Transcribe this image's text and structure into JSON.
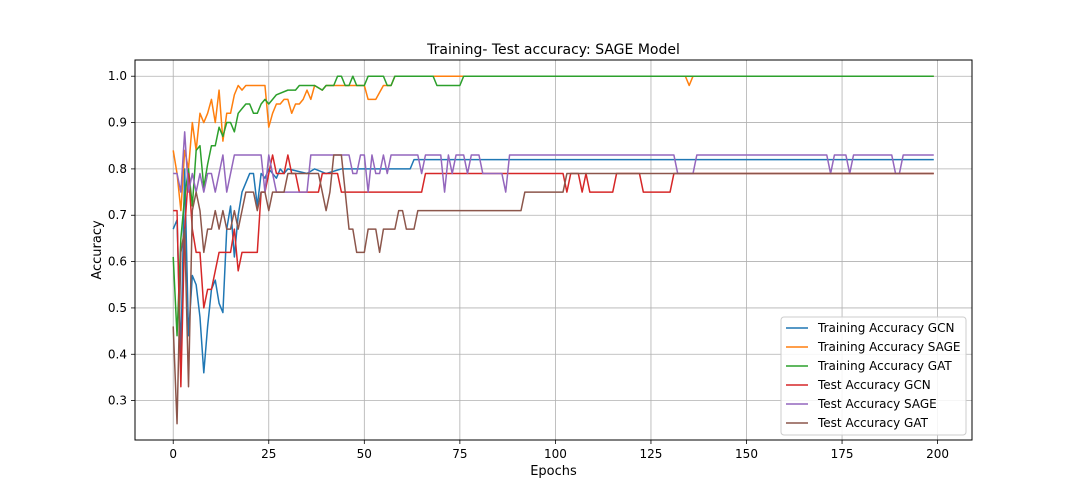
{
  "chart_data": {
    "type": "line",
    "title": "Training- Test accuracy: SAGE Model",
    "xlabel": "Epochs",
    "ylabel": "Accuracy",
    "xlim": [
      -10,
      209
    ],
    "ylim": [
      0.215,
      1.035
    ],
    "xticks": [
      0,
      25,
      50,
      75,
      100,
      125,
      150,
      175,
      200
    ],
    "yticks": [
      0.3,
      0.4,
      0.5,
      0.6,
      0.7,
      0.8,
      0.9,
      1.0
    ],
    "xtick_labels": [
      "0",
      "25",
      "50",
      "75",
      "100",
      "125",
      "150",
      "175",
      "200"
    ],
    "ytick_labels": [
      "0.3",
      "0.4",
      "0.5",
      "0.6",
      "0.7",
      "0.8",
      "0.9",
      "1.0"
    ],
    "grid": true,
    "legend_position": "lower right",
    "series": [
      {
        "name": "Training Accuracy GCN",
        "color": "#1f77b4",
        "points": [
          [
            0,
            0.67
          ],
          [
            1,
            0.69
          ],
          [
            2,
            0.4
          ],
          [
            3,
            0.8
          ],
          [
            4,
            0.44
          ],
          [
            5,
            0.57
          ],
          [
            6,
            0.55
          ],
          [
            7,
            0.48
          ],
          [
            8,
            0.36
          ],
          [
            9,
            0.46
          ],
          [
            10,
            0.54
          ],
          [
            11,
            0.56
          ],
          [
            12,
            0.51
          ],
          [
            13,
            0.49
          ],
          [
            14,
            0.67
          ],
          [
            15,
            0.72
          ],
          [
            16,
            0.61
          ],
          [
            17,
            0.7
          ],
          [
            18,
            0.75
          ],
          [
            19,
            0.77
          ],
          [
            20,
            0.79
          ],
          [
            21,
            0.79
          ],
          [
            22,
            0.72
          ],
          [
            23,
            0.79
          ],
          [
            24,
            0.78
          ],
          [
            25,
            0.8
          ],
          [
            26,
            0.79
          ],
          [
            27,
            0.78
          ],
          [
            28,
            0.8
          ],
          [
            29,
            0.79
          ],
          [
            30,
            0.8
          ],
          [
            35,
            0.79
          ],
          [
            37,
            0.8
          ],
          [
            40,
            0.79
          ],
          [
            44,
            0.8
          ],
          [
            46,
            0.8
          ],
          [
            62,
            0.8
          ],
          [
            63,
            0.82
          ],
          [
            199,
            0.82
          ]
        ]
      },
      {
        "name": "Training Accuracy SAGE",
        "color": "#ff7f0e",
        "points": [
          [
            0,
            0.84
          ],
          [
            1,
            0.79
          ],
          [
            2,
            0.71
          ],
          [
            3,
            0.84
          ],
          [
            4,
            0.8
          ],
          [
            5,
            0.9
          ],
          [
            6,
            0.84
          ],
          [
            7,
            0.92
          ],
          [
            8,
            0.9
          ],
          [
            9,
            0.92
          ],
          [
            10,
            0.95
          ],
          [
            11,
            0.9
          ],
          [
            12,
            0.97
          ],
          [
            13,
            0.86
          ],
          [
            14,
            0.92
          ],
          [
            15,
            0.92
          ],
          [
            16,
            0.96
          ],
          [
            17,
            0.98
          ],
          [
            18,
            0.97
          ],
          [
            19,
            0.98
          ],
          [
            20,
            0.98
          ],
          [
            24,
            0.98
          ],
          [
            25,
            0.89
          ],
          [
            26,
            0.92
          ],
          [
            27,
            0.94
          ],
          [
            28,
            0.94
          ],
          [
            29,
            0.95
          ],
          [
            30,
            0.95
          ],
          [
            31,
            0.92
          ],
          [
            32,
            0.94
          ],
          [
            33,
            0.94
          ],
          [
            34,
            0.95
          ],
          [
            35,
            0.97
          ],
          [
            36,
            0.95
          ],
          [
            37,
            0.98
          ],
          [
            39,
            0.97
          ],
          [
            40,
            0.98
          ],
          [
            50,
            0.98
          ],
          [
            51,
            0.95
          ],
          [
            53,
            0.95
          ],
          [
            55,
            0.98
          ],
          [
            57,
            0.98
          ],
          [
            58,
            1.0
          ],
          [
            134,
            1.0
          ],
          [
            135,
            0.98
          ],
          [
            136,
            1.0
          ],
          [
            199,
            1.0
          ]
        ]
      },
      {
        "name": "Training Accuracy GAT",
        "color": "#2ca02c",
        "points": [
          [
            0,
            0.61
          ],
          [
            1,
            0.44
          ],
          [
            2,
            0.65
          ],
          [
            3,
            0.74
          ],
          [
            4,
            0.8
          ],
          [
            5,
            0.72
          ],
          [
            6,
            0.84
          ],
          [
            7,
            0.85
          ],
          [
            8,
            0.76
          ],
          [
            9,
            0.81
          ],
          [
            10,
            0.85
          ],
          [
            11,
            0.85
          ],
          [
            12,
            0.89
          ],
          [
            13,
            0.87
          ],
          [
            14,
            0.9
          ],
          [
            15,
            0.9
          ],
          [
            16,
            0.88
          ],
          [
            17,
            0.92
          ],
          [
            18,
            0.93
          ],
          [
            19,
            0.94
          ],
          [
            20,
            0.94
          ],
          [
            21,
            0.92
          ],
          [
            22,
            0.92
          ],
          [
            23,
            0.94
          ],
          [
            24,
            0.95
          ],
          [
            25,
            0.94
          ],
          [
            26,
            0.95
          ],
          [
            27,
            0.96
          ],
          [
            30,
            0.97
          ],
          [
            32,
            0.97
          ],
          [
            33,
            0.98
          ],
          [
            36,
            0.98
          ],
          [
            37,
            0.98
          ],
          [
            39,
            0.97
          ],
          [
            40,
            0.98
          ],
          [
            41,
            0.98
          ],
          [
            42,
            0.98
          ],
          [
            43,
            1.0
          ],
          [
            44,
            1.0
          ],
          [
            45,
            0.98
          ],
          [
            46,
            0.98
          ],
          [
            47,
            1.0
          ],
          [
            48,
            0.98
          ],
          [
            50,
            0.98
          ],
          [
            51,
            1.0
          ],
          [
            55,
            1.0
          ],
          [
            56,
            0.98
          ],
          [
            57,
            0.98
          ],
          [
            58,
            1.0
          ],
          [
            68,
            1.0
          ],
          [
            69,
            0.98
          ],
          [
            75,
            0.98
          ],
          [
            76,
            1.0
          ],
          [
            199,
            1.0
          ]
        ]
      },
      {
        "name": "Test Accuracy GCN",
        "color": "#d62728",
        "points": [
          [
            0,
            0.71
          ],
          [
            1,
            0.71
          ],
          [
            2,
            0.33
          ],
          [
            3,
            0.67
          ],
          [
            4,
            0.79
          ],
          [
            5,
            0.67
          ],
          [
            6,
            0.62
          ],
          [
            7,
            0.62
          ],
          [
            8,
            0.5
          ],
          [
            9,
            0.54
          ],
          [
            10,
            0.54
          ],
          [
            11,
            0.58
          ],
          [
            12,
            0.62
          ],
          [
            14,
            0.62
          ],
          [
            15,
            0.62
          ],
          [
            16,
            0.67
          ],
          [
            17,
            0.58
          ],
          [
            18,
            0.62
          ],
          [
            22,
            0.62
          ],
          [
            23,
            0.75
          ],
          [
            24,
            0.75
          ],
          [
            25,
            0.79
          ],
          [
            26,
            0.83
          ],
          [
            27,
            0.79
          ],
          [
            28,
            0.79
          ],
          [
            29,
            0.79
          ],
          [
            30,
            0.83
          ],
          [
            31,
            0.79
          ],
          [
            32,
            0.79
          ],
          [
            33,
            0.75
          ],
          [
            38,
            0.75
          ],
          [
            39,
            0.79
          ],
          [
            43,
            0.79
          ],
          [
            44,
            0.75
          ],
          [
            65,
            0.75
          ],
          [
            66,
            0.79
          ],
          [
            102,
            0.79
          ],
          [
            103,
            0.75
          ],
          [
            104,
            0.79
          ],
          [
            106,
            0.79
          ],
          [
            107,
            0.75
          ],
          [
            108,
            0.79
          ],
          [
            109,
            0.75
          ],
          [
            115,
            0.75
          ],
          [
            116,
            0.79
          ],
          [
            122,
            0.79
          ],
          [
            123,
            0.75
          ],
          [
            130,
            0.75
          ],
          [
            131,
            0.79
          ],
          [
            199,
            0.79
          ]
        ]
      },
      {
        "name": "Test Accuracy SAGE",
        "color": "#9467bd",
        "points": [
          [
            0,
            0.79
          ],
          [
            1,
            0.79
          ],
          [
            2,
            0.75
          ],
          [
            3,
            0.88
          ],
          [
            4,
            0.75
          ],
          [
            5,
            0.79
          ],
          [
            6,
            0.75
          ],
          [
            7,
            0.79
          ],
          [
            8,
            0.75
          ],
          [
            9,
            0.79
          ],
          [
            10,
            0.79
          ],
          [
            11,
            0.75
          ],
          [
            12,
            0.79
          ],
          [
            13,
            0.83
          ],
          [
            14,
            0.75
          ],
          [
            15,
            0.79
          ],
          [
            16,
            0.83
          ],
          [
            23,
            0.83
          ],
          [
            24,
            0.75
          ],
          [
            25,
            0.83
          ],
          [
            26,
            0.79
          ],
          [
            27,
            0.75
          ],
          [
            35,
            0.75
          ],
          [
            36,
            0.83
          ],
          [
            46,
            0.83
          ],
          [
            47,
            0.79
          ],
          [
            48,
            0.79
          ],
          [
            49,
            0.83
          ],
          [
            50,
            0.83
          ],
          [
            51,
            0.75
          ],
          [
            52,
            0.83
          ],
          [
            53,
            0.79
          ],
          [
            54,
            0.79
          ],
          [
            55,
            0.83
          ],
          [
            56,
            0.79
          ],
          [
            57,
            0.83
          ],
          [
            64,
            0.83
          ],
          [
            65,
            0.79
          ],
          [
            66,
            0.83
          ],
          [
            70,
            0.83
          ],
          [
            71,
            0.75
          ],
          [
            72,
            0.83
          ],
          [
            73,
            0.79
          ],
          [
            74,
            0.83
          ],
          [
            76,
            0.83
          ],
          [
            77,
            0.79
          ],
          [
            78,
            0.83
          ],
          [
            80,
            0.83
          ],
          [
            81,
            0.79
          ],
          [
            86,
            0.79
          ],
          [
            87,
            0.75
          ],
          [
            88,
            0.83
          ],
          [
            131,
            0.83
          ],
          [
            132,
            0.79
          ],
          [
            136,
            0.79
          ],
          [
            137,
            0.83
          ],
          [
            171,
            0.83
          ],
          [
            172,
            0.79
          ],
          [
            173,
            0.83
          ],
          [
            176,
            0.83
          ],
          [
            177,
            0.79
          ],
          [
            178,
            0.83
          ],
          [
            188,
            0.83
          ],
          [
            189,
            0.79
          ],
          [
            190,
            0.79
          ],
          [
            191,
            0.83
          ],
          [
            199,
            0.83
          ]
        ]
      },
      {
        "name": "Test Accuracy GAT",
        "color": "#8c564b",
        "points": [
          [
            0,
            0.46
          ],
          [
            1,
            0.25
          ],
          [
            2,
            0.62
          ],
          [
            3,
            0.67
          ],
          [
            4,
            0.33
          ],
          [
            5,
            0.71
          ],
          [
            6,
            0.75
          ],
          [
            7,
            0.71
          ],
          [
            8,
            0.62
          ],
          [
            9,
            0.67
          ],
          [
            10,
            0.67
          ],
          [
            11,
            0.71
          ],
          [
            12,
            0.67
          ],
          [
            13,
            0.71
          ],
          [
            14,
            0.67
          ],
          [
            15,
            0.67
          ],
          [
            16,
            0.71
          ],
          [
            17,
            0.67
          ],
          [
            18,
            0.71
          ],
          [
            19,
            0.75
          ],
          [
            20,
            0.75
          ],
          [
            21,
            0.75
          ],
          [
            22,
            0.71
          ],
          [
            23,
            0.75
          ],
          [
            24,
            0.75
          ],
          [
            25,
            0.71
          ],
          [
            26,
            0.75
          ],
          [
            27,
            0.75
          ],
          [
            29,
            0.75
          ],
          [
            30,
            0.79
          ],
          [
            38,
            0.79
          ],
          [
            39,
            0.75
          ],
          [
            40,
            0.71
          ],
          [
            41,
            0.75
          ],
          [
            42,
            0.83
          ],
          [
            44,
            0.83
          ],
          [
            45,
            0.75
          ],
          [
            46,
            0.67
          ],
          [
            47,
            0.67
          ],
          [
            48,
            0.62
          ],
          [
            50,
            0.62
          ],
          [
            51,
            0.67
          ],
          [
            53,
            0.67
          ],
          [
            54,
            0.62
          ],
          [
            55,
            0.67
          ],
          [
            58,
            0.67
          ],
          [
            59,
            0.71
          ],
          [
            60,
            0.71
          ],
          [
            61,
            0.67
          ],
          [
            63,
            0.67
          ],
          [
            64,
            0.71
          ],
          [
            78,
            0.71
          ],
          [
            79,
            0.71
          ],
          [
            91,
            0.71
          ],
          [
            92,
            0.75
          ],
          [
            102,
            0.75
          ],
          [
            103,
            0.79
          ],
          [
            199,
            0.79
          ]
        ]
      }
    ]
  }
}
